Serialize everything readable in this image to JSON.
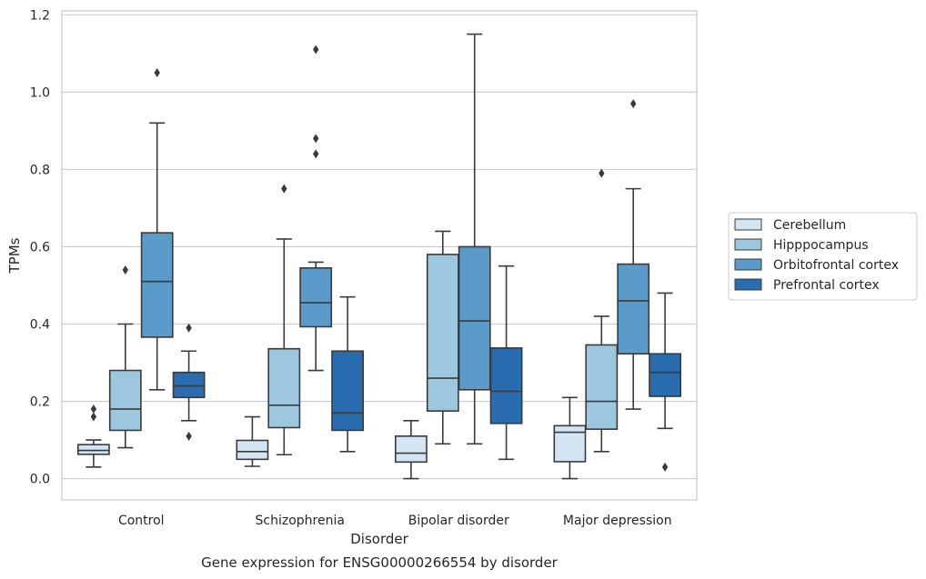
{
  "chart_data": {
    "type": "boxplot",
    "title": "",
    "caption": "Gene expression for ENSG00000266554 by disorder",
    "xlabel": "Disorder",
    "ylabel": "TPMs",
    "ylim": [
      -0.055,
      1.21
    ],
    "yticks": [
      "0.0",
      "0.2",
      "0.4",
      "0.6",
      "0.8",
      "1.0",
      "1.2"
    ],
    "grid": "horizontal",
    "legend_placement": "right",
    "categories": [
      "Control",
      "Schizophrenia",
      "Bipolar disorder",
      "Major depression"
    ],
    "series": [
      {
        "name": "Cerebellum",
        "color": "#d3e4f3",
        "boxes": [
          {
            "q1": 0.063,
            "median": 0.073,
            "q3": 0.088,
            "whisker_low": 0.03,
            "whisker_high": 0.1,
            "outliers": [
              0.16,
              0.18
            ]
          },
          {
            "q1": 0.05,
            "median": 0.07,
            "q3": 0.099,
            "whisker_low": 0.032,
            "whisker_high": 0.16,
            "outliers": []
          },
          {
            "q1": 0.043,
            "median": 0.066,
            "q3": 0.11,
            "whisker_low": 0.0,
            "whisker_high": 0.15,
            "outliers": []
          },
          {
            "q1": 0.044,
            "median": 0.12,
            "q3": 0.137,
            "whisker_low": 0.0,
            "whisker_high": 0.21,
            "outliers": []
          }
        ]
      },
      {
        "name": "Hipppocampus",
        "color": "#9cc7df",
        "boxes": [
          {
            "q1": 0.125,
            "median": 0.18,
            "q3": 0.28,
            "whisker_low": 0.08,
            "whisker_high": 0.4,
            "outliers": [
              0.54
            ]
          },
          {
            "q1": 0.132,
            "median": 0.19,
            "q3": 0.336,
            "whisker_low": 0.062,
            "whisker_high": 0.62,
            "outliers": [
              0.75
            ]
          },
          {
            "q1": 0.175,
            "median": 0.26,
            "q3": 0.58,
            "whisker_low": 0.09,
            "whisker_high": 0.64,
            "outliers": []
          },
          {
            "q1": 0.128,
            "median": 0.2,
            "q3": 0.346,
            "whisker_low": 0.07,
            "whisker_high": 0.42,
            "outliers": [
              0.79
            ]
          }
        ]
      },
      {
        "name": "Orbitofrontal cortex",
        "color": "#5b9bc9",
        "boxes": [
          {
            "q1": 0.366,
            "median": 0.51,
            "q3": 0.636,
            "whisker_low": 0.23,
            "whisker_high": 0.92,
            "outliers": [
              1.05
            ]
          },
          {
            "q1": 0.393,
            "median": 0.455,
            "q3": 0.545,
            "whisker_low": 0.28,
            "whisker_high": 0.56,
            "outliers": [
              0.84,
              0.88,
              1.11
            ]
          },
          {
            "q1": 0.23,
            "median": 0.408,
            "q3": 0.6,
            "whisker_low": 0.09,
            "whisker_high": 1.15,
            "outliers": []
          },
          {
            "q1": 0.323,
            "median": 0.46,
            "q3": 0.555,
            "whisker_low": 0.18,
            "whisker_high": 0.75,
            "outliers": [
              0.97
            ]
          }
        ]
      },
      {
        "name": "Prefrontal cortex",
        "color": "#2a6cb0",
        "boxes": [
          {
            "q1": 0.21,
            "median": 0.24,
            "q3": 0.275,
            "whisker_low": 0.15,
            "whisker_high": 0.33,
            "outliers": [
              0.11,
              0.39
            ]
          },
          {
            "q1": 0.125,
            "median": 0.17,
            "q3": 0.33,
            "whisker_low": 0.07,
            "whisker_high": 0.47,
            "outliers": []
          },
          {
            "q1": 0.143,
            "median": 0.226,
            "q3": 0.338,
            "whisker_low": 0.05,
            "whisker_high": 0.55,
            "outliers": []
          },
          {
            "q1": 0.213,
            "median": 0.275,
            "q3": 0.323,
            "whisker_low": 0.13,
            "whisker_high": 0.48,
            "outliers": [
              0.03
            ]
          }
        ]
      }
    ]
  }
}
